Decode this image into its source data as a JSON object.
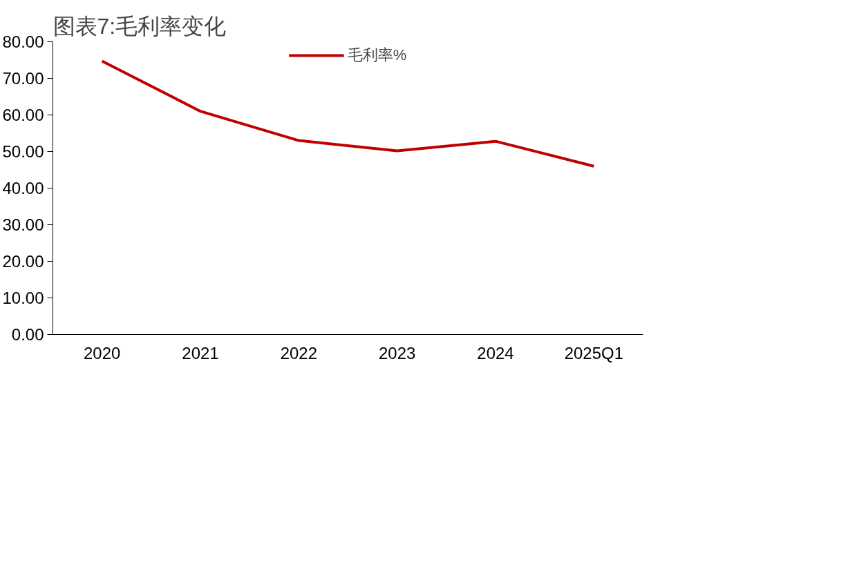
{
  "chart_data": {
    "type": "line",
    "title": "图表7:毛利率变化",
    "categories": [
      "2020",
      "2021",
      "2022",
      "2023",
      "2024",
      "2025Q1"
    ],
    "series": [
      {
        "name": "毛利率%",
        "color": "#c00000",
        "values": [
          74.7,
          61.0,
          53.0,
          50.2,
          52.8,
          46.0
        ]
      }
    ],
    "ylim": [
      0,
      80
    ],
    "yticks": [
      {
        "value": 0,
        "label": "0.00"
      },
      {
        "value": 10,
        "label": "10.00"
      },
      {
        "value": 20,
        "label": "20.00"
      },
      {
        "value": 30,
        "label": "30.00"
      },
      {
        "value": 40,
        "label": "40.00"
      },
      {
        "value": 50,
        "label": "50.00"
      },
      {
        "value": 60,
        "label": "60.00"
      },
      {
        "value": 70,
        "label": "70.00"
      },
      {
        "value": 80,
        "label": "80.00"
      }
    ],
    "grid": false,
    "legend": "top",
    "marker": "none",
    "line_style": "solid"
  }
}
